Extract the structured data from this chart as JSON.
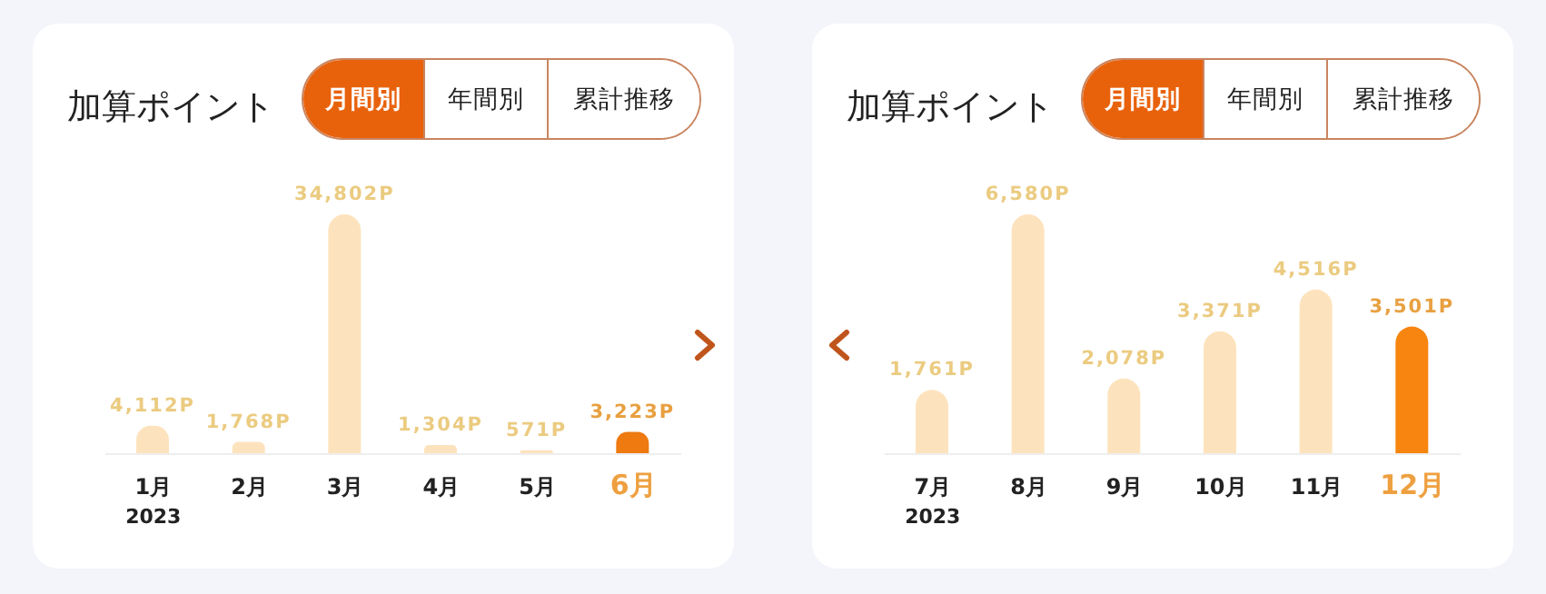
{
  "chart_data": [
    {
      "type": "bar",
      "title": "加算ポイント",
      "categories": [
        "1月",
        "2月",
        "3月",
        "4月",
        "5月",
        "6月"
      ],
      "values": [
        4112,
        1768,
        34802,
        1304,
        571,
        3223
      ],
      "value_labels": [
        "4,112P",
        "1,768P",
        "34,802P",
        "1,304P",
        "571P",
        "3,223P"
      ],
      "colors": [
        "#fde3bd",
        "#fde3bd",
        "#fde3bd",
        "#fde3bd",
        "#fde3bd",
        "#ee7a10"
      ],
      "annotations": [
        "月間別",
        "年間別",
        "累計推移",
        "2023"
      ]
    },
    {
      "type": "bar",
      "title": "加算ポイント",
      "categories": [
        "7月",
        "8月",
        "9月",
        "10月",
        "11月",
        "12月"
      ],
      "values": [
        1761,
        6580,
        2078,
        3371,
        4516,
        3501
      ],
      "value_labels": [
        "1,761P",
        "6,580P",
        "2,078P",
        "3,371P",
        "4,516P",
        "3,501P"
      ],
      "colors": [
        "#fde3bd",
        "#fde3bd",
        "#fde3bd",
        "#fde3bd",
        "#fde3bd",
        "#f7850f"
      ],
      "annotations": [
        "月間別",
        "年間別",
        "累計推移",
        "2023"
      ]
    }
  ]
}
